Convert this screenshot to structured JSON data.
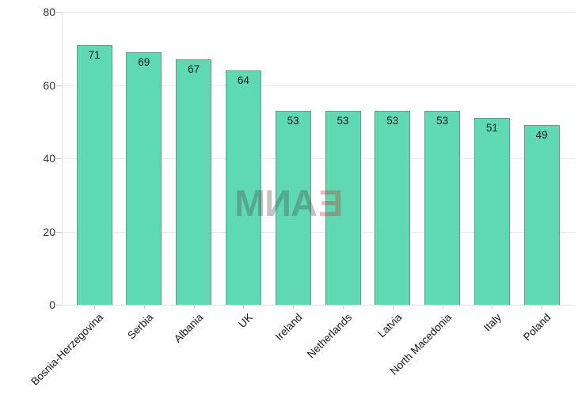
{
  "chart_data": {
    "type": "bar",
    "title": "",
    "xlabel": "",
    "ylabel": "",
    "categories": [
      "Bosnia-Herzegovina",
      "Serbia",
      "Albania",
      "UK",
      "Ireland",
      "Netherlands",
      "Latvia",
      "North Macedonia",
      "Italy",
      "Poland"
    ],
    "values": [
      71,
      69,
      67,
      64,
      53,
      53,
      53,
      53,
      51,
      49
    ],
    "ylim": [
      0,
      80
    ],
    "yticks": [
      0,
      20,
      40,
      60,
      80
    ],
    "grid": true,
    "legend": false,
    "colors": {
      "bar_fill": "#5fd9b2",
      "bar_border": "#6f968d",
      "gridline": "#e9e9e9",
      "axis_line": "#e2e2e2",
      "tick_mark": "#c9c9c9",
      "ytick_label": "#333333",
      "value_label": "#1b1b1b",
      "xtick_label": "#141414",
      "background": "#ffffff"
    }
  },
  "watermark": {
    "gray_text": "МИА",
    "red_text": "Е",
    "gray_color": "#3c3c3c",
    "red_color": "#c42222"
  }
}
